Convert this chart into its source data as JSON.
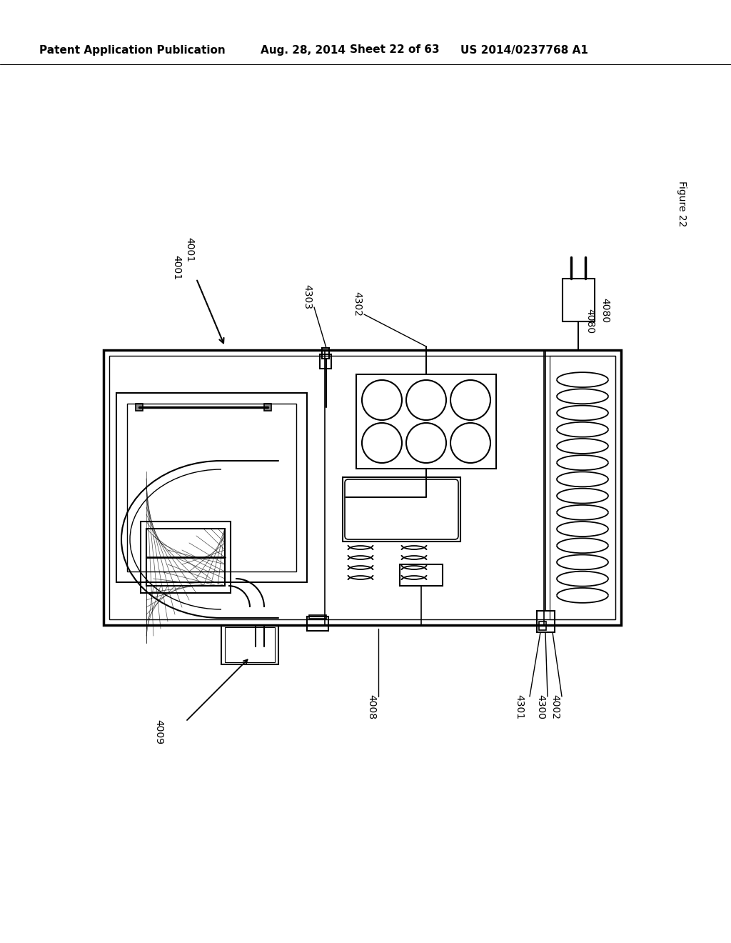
{
  "bg_color": "#ffffff",
  "header_text": "Patent Application Publication",
  "header_date": "Aug. 28, 2014",
  "header_sheet": "Sheet 22 of 63",
  "header_patent": "US 2014/0237768 A1",
  "figure_label": "Figure 22",
  "label_4001": "4001",
  "label_4002": "4002",
  "label_4008": "4008",
  "label_4009": "4009",
  "label_4080": "4080",
  "label_4300": "4300",
  "label_4301": "4301",
  "label_4302": "4302",
  "label_4303": "4303"
}
